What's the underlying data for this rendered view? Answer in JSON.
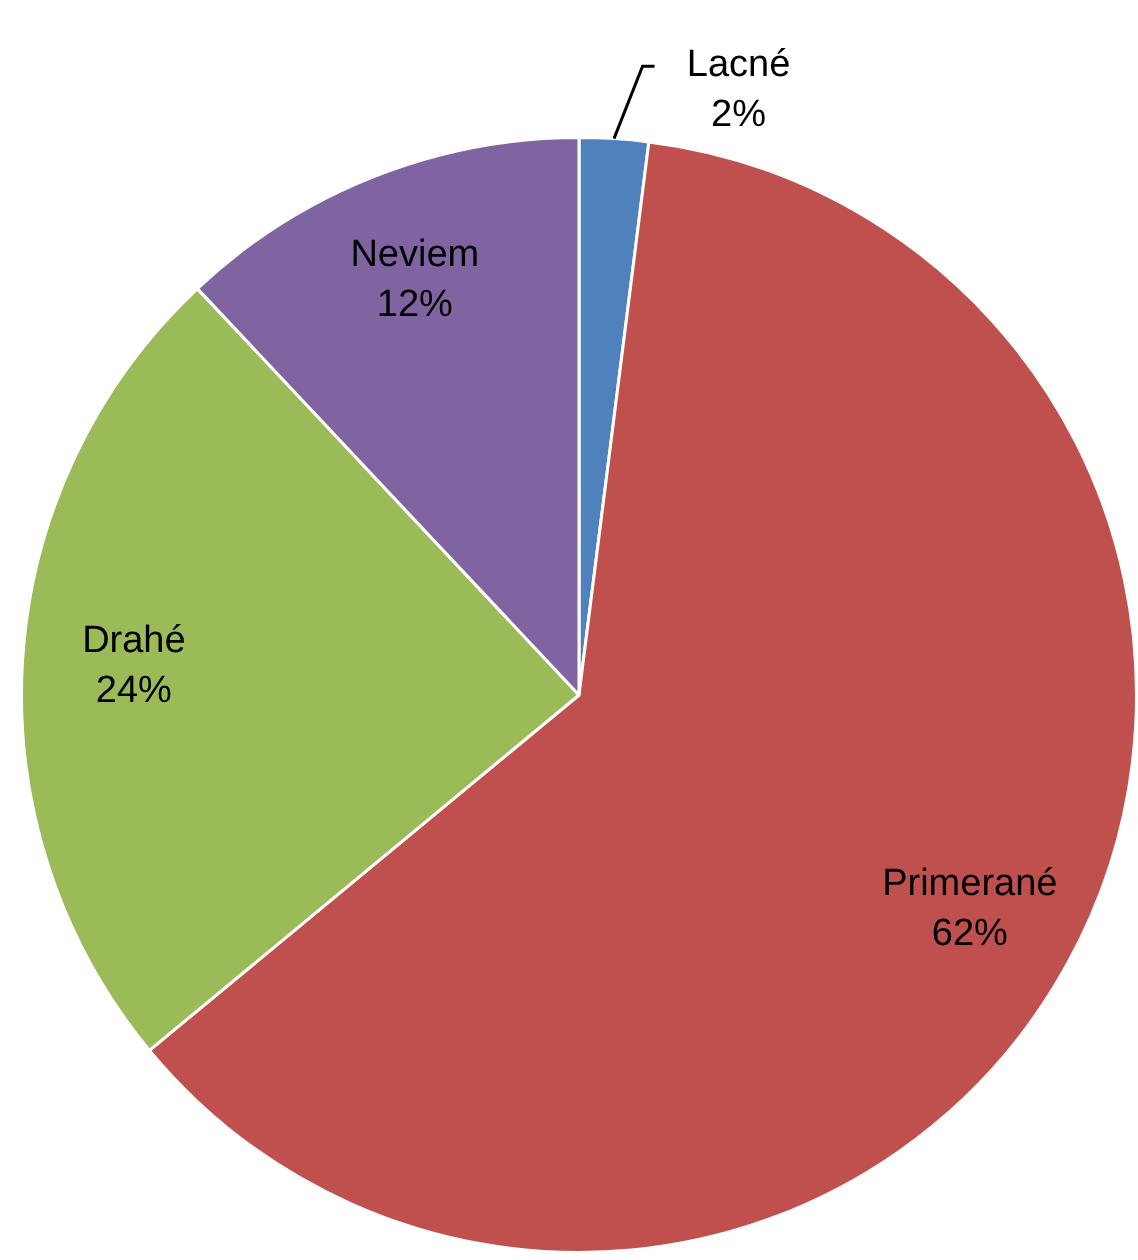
{
  "chart_data": {
    "type": "pie",
    "categories": [
      "Lacné",
      "Primerané",
      "Drahé",
      "Neviem"
    ],
    "values": [
      2,
      62,
      24,
      12
    ],
    "value_labels": [
      "2%",
      "62%",
      "24%",
      "12%"
    ],
    "colors": [
      "#4f81bd",
      "#c0504d",
      "#9bbb59",
      "#8064a2"
    ],
    "legend": false
  }
}
